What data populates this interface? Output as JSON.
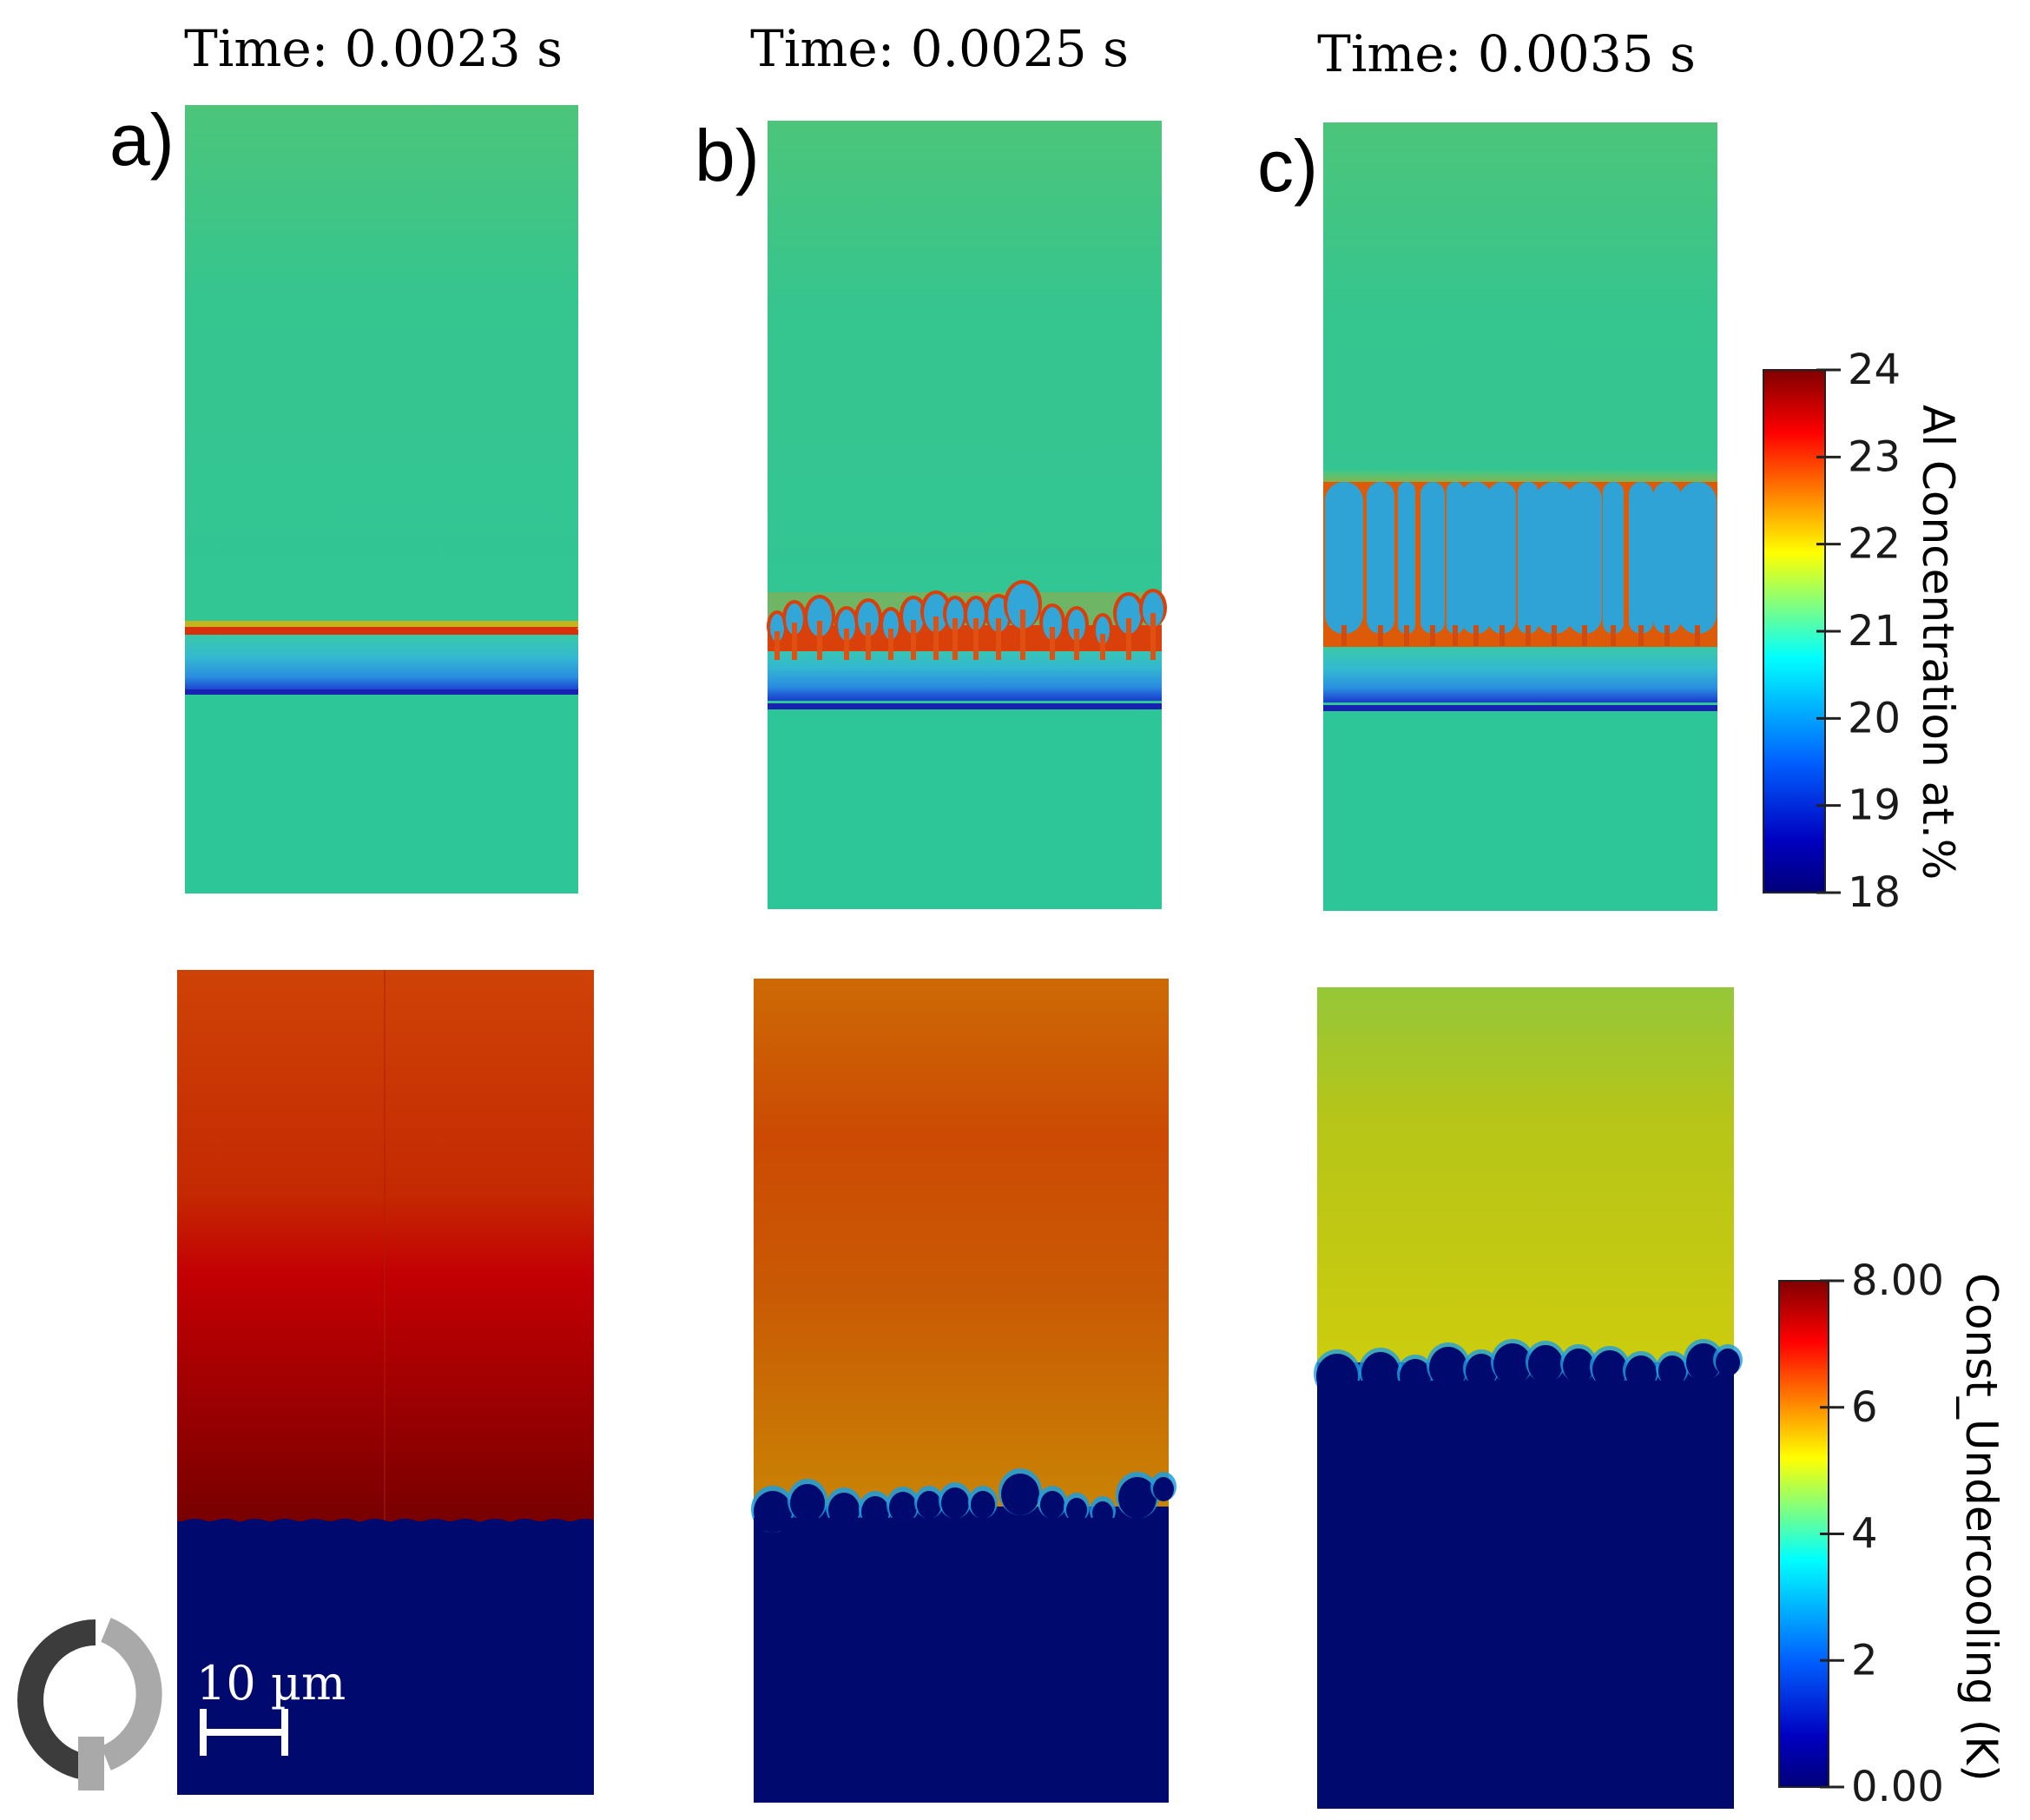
{
  "columns": [
    {
      "panel_label": "a)",
      "time_label": "Time: 0.0023 s"
    },
    {
      "panel_label": "b)",
      "time_label": "Time: 0.0025 s"
    },
    {
      "panel_label": "c)",
      "time_label": "Time: 0.0035 s"
    }
  ],
  "colorbar_concentration": {
    "title": "Al Concentration at.%",
    "ticks": [
      "24",
      "23",
      "22",
      "21",
      "20",
      "19",
      "18"
    ],
    "range": [
      18,
      24
    ]
  },
  "colorbar_undercooling": {
    "title": "Const_Undercooling (K)",
    "ticks": [
      "8.00",
      "6",
      "4",
      "2",
      "0.00"
    ],
    "range": [
      0,
      8
    ]
  },
  "scale_bar": {
    "label": "10 µm"
  },
  "colors": {
    "liquid_green": "#2ec79a",
    "interface_red": "#e0400a",
    "solid_navy": "#00066e",
    "dendrite_cyan": "#33a6d8"
  }
}
